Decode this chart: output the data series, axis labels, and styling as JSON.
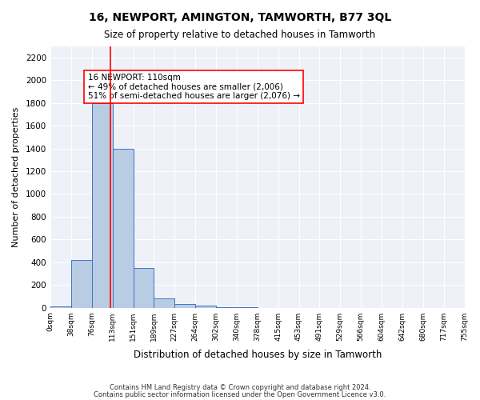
{
  "title": "16, NEWPORT, AMINGTON, TAMWORTH, B77 3QL",
  "subtitle": "Size of property relative to detached houses in Tamworth",
  "xlabel": "Distribution of detached houses by size in Tamworth",
  "ylabel": "Number of detached properties",
  "bin_labels": [
    "0sqm",
    "38sqm",
    "76sqm",
    "113sqm",
    "151sqm",
    "189sqm",
    "227sqm",
    "264sqm",
    "302sqm",
    "340sqm",
    "378sqm",
    "415sqm",
    "453sqm",
    "491sqm",
    "529sqm",
    "566sqm",
    "604sqm",
    "642sqm",
    "680sqm",
    "717sqm",
    "755sqm"
  ],
  "bar_heights": [
    15,
    420,
    1800,
    1400,
    350,
    80,
    35,
    20,
    5,
    2,
    1,
    0,
    0,
    0,
    0,
    0,
    0,
    0,
    0,
    0
  ],
  "bar_color": "#b8cce4",
  "bar_edge_color": "#4472c4",
  "ylim": [
    0,
    2300
  ],
  "yticks": [
    0,
    200,
    400,
    600,
    800,
    1000,
    1200,
    1400,
    1600,
    1800,
    2000,
    2200
  ],
  "red_line_x": 2.89,
  "annotation_text": "16 NEWPORT: 110sqm\n← 49% of detached houses are smaller (2,006)\n51% of semi-detached houses are larger (2,076) →",
  "bg_color": "#eef2f8",
  "footer_line1": "Contains HM Land Registry data © Crown copyright and database right 2024.",
  "footer_line2": "Contains public sector information licensed under the Open Government Licence v3.0."
}
